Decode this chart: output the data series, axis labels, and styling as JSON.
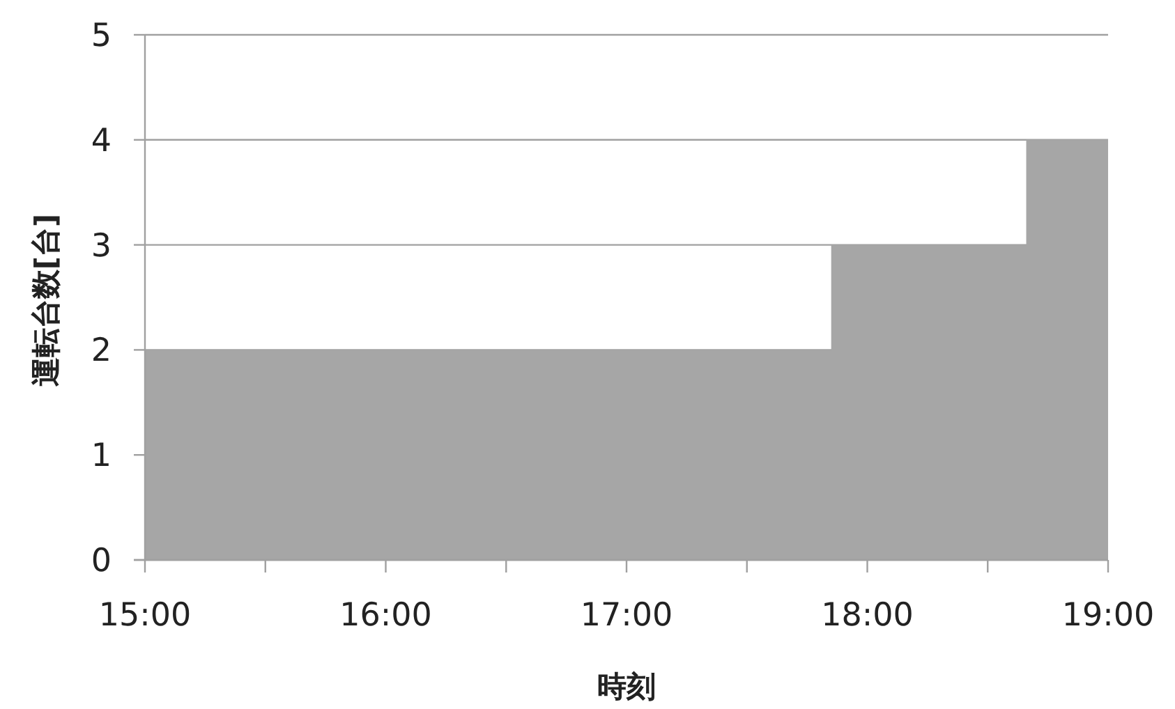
{
  "chart_data": {
    "type": "area",
    "xlabel": "時刻",
    "ylabel": "運転台数[台]",
    "x": [
      15,
      17.85,
      17.85,
      18.66,
      18.66,
      19
    ],
    "series": [
      {
        "color": "#a6a6a6",
        "values": [
          2,
          2,
          3,
          3,
          4,
          4
        ]
      }
    ],
    "xlim": [
      15,
      19
    ],
    "xticks": [
      {
        "value": 15,
        "label": "15:00"
      },
      {
        "value": 15.5,
        "label": null
      },
      {
        "value": 16,
        "label": "16:00"
      },
      {
        "value": 16.5,
        "label": null
      },
      {
        "value": 17,
        "label": "17:00"
      },
      {
        "value": 17.5,
        "label": null
      },
      {
        "value": 18,
        "label": "18:00"
      },
      {
        "value": 18.5,
        "label": null
      },
      {
        "value": 19,
        "label": "19:00"
      }
    ],
    "ylim": [
      0,
      5
    ],
    "yticks": [
      0,
      1,
      2,
      3,
      4,
      5
    ],
    "grid": "y"
  }
}
